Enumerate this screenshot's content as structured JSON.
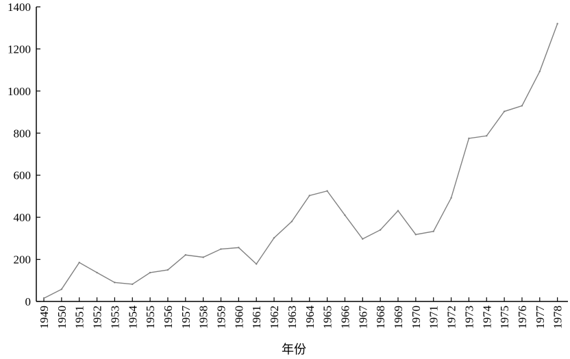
{
  "chart_data": {
    "type": "line",
    "title": "",
    "xlabel": "年份",
    "ylabel": "",
    "ylim": [
      0,
      1400
    ],
    "yticks": [
      0,
      200,
      400,
      600,
      800,
      1000,
      1200,
      1400
    ],
    "grid": false,
    "legend": "none",
    "line_color": "#808080",
    "x": [
      "1949",
      "1950",
      "1951",
      "1952",
      "1953",
      "1954",
      "1955",
      "1956",
      "1957",
      "1958",
      "1959",
      "1960",
      "1961",
      "1962",
      "1963",
      "1964",
      "1965",
      "1966",
      "1967",
      "1968",
      "1969",
      "1970",
      "1971",
      "1972",
      "1973",
      "1974",
      "1975",
      "1976",
      "1977",
      "1978"
    ],
    "series": [
      {
        "values": [
          15,
          58,
          185,
          137,
          90,
          82,
          137,
          150,
          221,
          210,
          249,
          256,
          178,
          302,
          380,
          503,
          525,
          410,
          297,
          340,
          431,
          318,
          333,
          492,
          775,
          787,
          903,
          930,
          1093,
          1320
        ]
      }
    ]
  }
}
